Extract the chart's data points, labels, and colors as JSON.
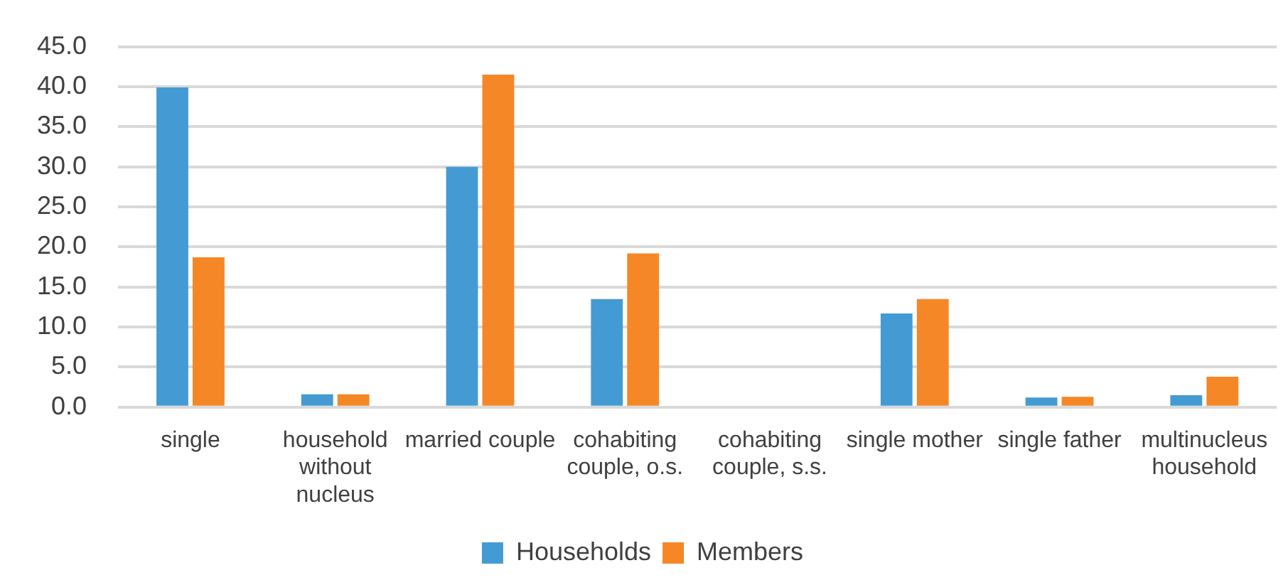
{
  "chart_data": {
    "type": "bar",
    "categories": [
      "single",
      "household without nucleus",
      "married couple",
      "cohabiting couple, o.s.",
      "cohabiting couple, s.s.",
      "single mother",
      "single father",
      "multinucleus household"
    ],
    "series": [
      {
        "name": "Households",
        "color": "#449bd3",
        "values": [
          39.9,
          1.6,
          30.0,
          13.5,
          0,
          11.7,
          1.2,
          1.5
        ]
      },
      {
        "name": "Members",
        "color": "#f58726",
        "values": [
          18.7,
          1.6,
          41.5,
          19.2,
          0,
          13.5,
          1.3,
          3.8
        ]
      }
    ],
    "ylim": [
      0,
      45
    ],
    "yticks": [
      {
        "value": 0,
        "label": "0.0"
      },
      {
        "value": 5,
        "label": "5.0"
      },
      {
        "value": 10,
        "label": "10.0"
      },
      {
        "value": 15,
        "label": "15.0"
      },
      {
        "value": 20,
        "label": "20.0"
      },
      {
        "value": 25,
        "label": "25.0"
      },
      {
        "value": 30,
        "label": "30.0"
      },
      {
        "value": 35,
        "label": "35.0"
      },
      {
        "value": 40,
        "label": "40.0"
      },
      {
        "value": 45,
        "label": "45.0"
      }
    ],
    "grid": "y",
    "legend": "bottom"
  }
}
